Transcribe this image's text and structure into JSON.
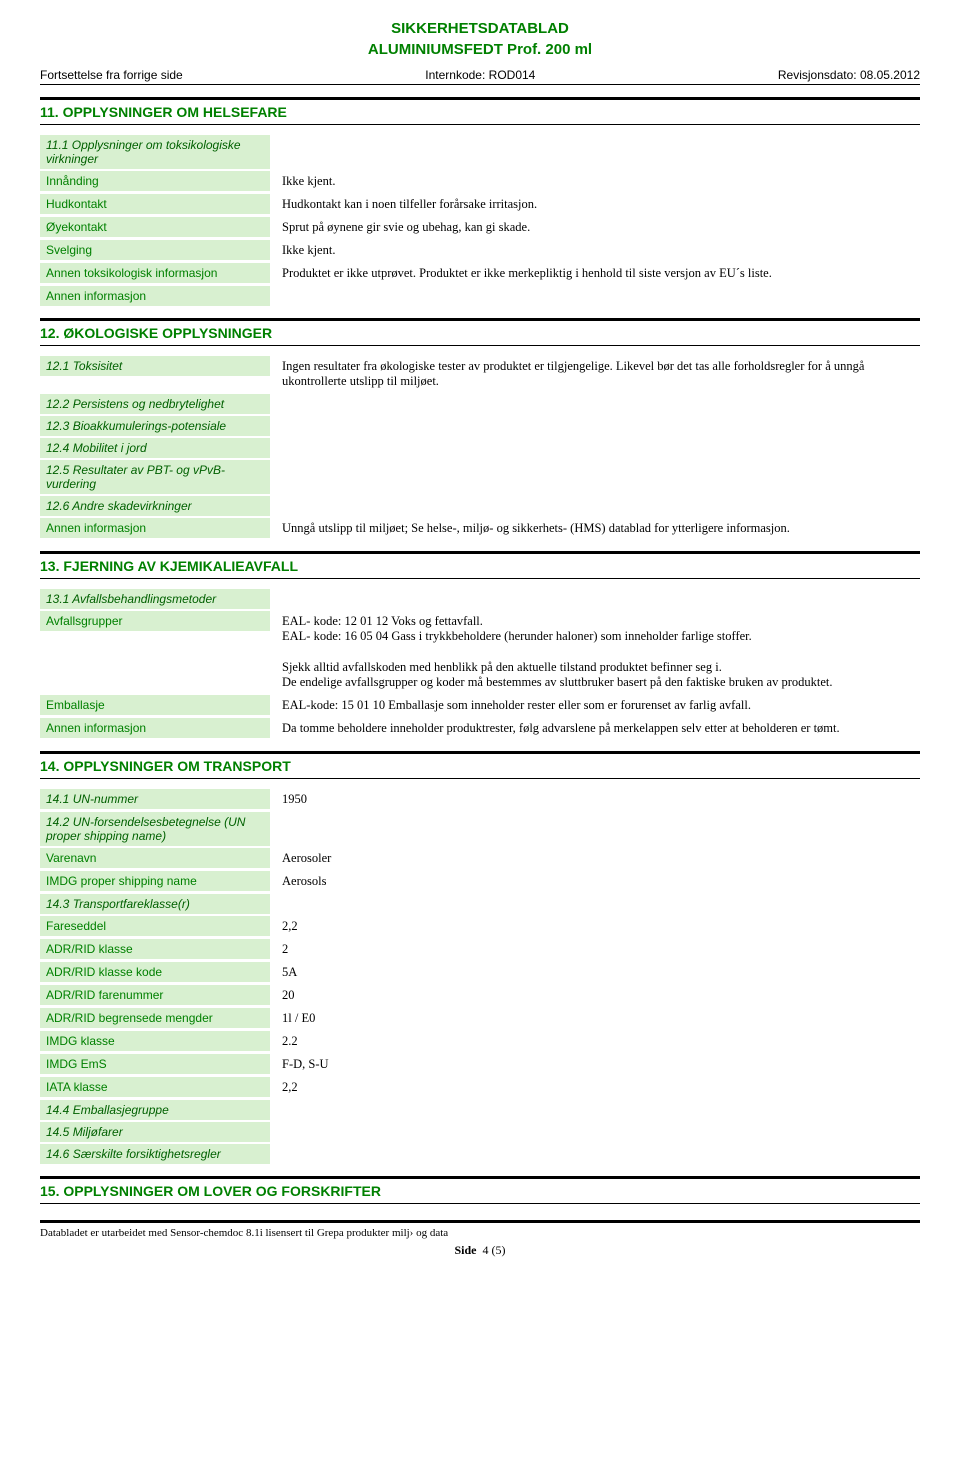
{
  "doc": {
    "title": "SIKKERHETSDATABLAD",
    "subtitle": "ALUMINIUMSFEDT Prof. 200 ml"
  },
  "header": {
    "continuation": "Fortsettelse fra forrige side",
    "internkode_label": "Internkode:",
    "internkode_value": "ROD014",
    "revdate_label": "Revisjonsdato:",
    "revdate_value": "08.05.2012"
  },
  "section11": {
    "title": "11. OPPLYSNINGER OM HELSEFARE",
    "rows": [
      {
        "label": "11.1 Opplysninger om toksikologiske virkninger",
        "value": ""
      },
      {
        "label": "Innånding",
        "value": "Ikke kjent."
      },
      {
        "label": "Hudkontakt",
        "value": "Hudkontakt kan i noen tilfeller forårsake irritasjon."
      },
      {
        "label": "Øyekontakt",
        "value": "Sprut på øynene gir svie og ubehag, kan gi skade."
      },
      {
        "label": "Svelging",
        "value": "Ikke kjent."
      },
      {
        "label": "Annen toksikologisk informasjon",
        "value": "Produktet er ikke utprøvet. Produktet er ikke merkepliktig i henhold til siste versjon av EU´s liste."
      },
      {
        "label": "Annen informasjon",
        "value": ""
      }
    ]
  },
  "section12": {
    "title": "12. ØKOLOGISKE OPPLYSNINGER",
    "rows": [
      {
        "label": "12.1 Toksisitet",
        "value": "Ingen resultater fra økologiske tester av produktet er tilgjengelige. Likevel bør det tas alle forholdsregler for å unngå ukontrollerte utslipp til miljøet."
      },
      {
        "label": "12.2 Persistens og nedbrytelighet",
        "value": ""
      },
      {
        "label": "12.3 Bioakkumulerings-potensiale",
        "value": ""
      },
      {
        "label": "12.4 Mobilitet i jord",
        "value": ""
      },
      {
        "label": "12.5 Resultater av PBT- og vPvB-vurdering",
        "value": ""
      },
      {
        "label": "12.6 Andre skadevirkninger",
        "value": ""
      },
      {
        "label": "Annen informasjon",
        "value": "Unngå utslipp til miljøet; Se helse-, miljø- og sikkerhets- (HMS) datablad for ytterligere informasjon."
      }
    ]
  },
  "section13": {
    "title": "13. FJERNING AV KJEMIKALIEAVFALL",
    "rows1": [
      {
        "label": "13.1 Avfallsbehandlingsmetoder",
        "value": ""
      },
      {
        "label": "Avfallsgrupper",
        "value": "EAL- kode: 12 01 12  Voks og fettavfall.\nEAL- kode: 16 05 04  Gass i trykkbeholdere (herunder haloner) som inneholder farlige stoffer."
      }
    ],
    "mid_text": "Sjekk alltid avfallskoden med henblikk på den aktuelle tilstand produktet befinner seg i.\nDe endelige avfallsgrupper og koder må bestemmes av sluttbruker basert på den faktiske bruken av produktet.",
    "rows2": [
      {
        "label": "Emballasje",
        "value": "EAL-kode: 15 01 10 Emballasje som inneholder rester eller som er forurenset av farlig avfall."
      },
      {
        "label": "Annen informasjon",
        "value": "Da tomme beholdere inneholder produktrester, følg advarslene på merkelappen selv etter at beholderen er tømt."
      }
    ]
  },
  "section14": {
    "title": "14. OPPLYSNINGER OM TRANSPORT",
    "rows": [
      {
        "label": "14.1 UN-nummer",
        "value": "1950"
      },
      {
        "label": "14.2 UN-forsendelsesbetegnelse (UN proper shipping name)",
        "value": ""
      },
      {
        "label": "Varenavn",
        "value": "Aerosoler"
      },
      {
        "label": "IMDG proper shipping name",
        "value": "Aerosols"
      },
      {
        "label": "14.3 Transportfareklasse(r)",
        "value": ""
      },
      {
        "label": "Fareseddel",
        "value": "2,2"
      },
      {
        "label": "ADR/RID klasse",
        "value": "2"
      },
      {
        "label": "ADR/RID klasse kode",
        "value": "5A"
      },
      {
        "label": "ADR/RID farenummer",
        "value": "20"
      },
      {
        "label": "ADR/RID begrensede mengder",
        "value": "1l / E0"
      },
      {
        "label": "IMDG klasse",
        "value": "2.2"
      },
      {
        "label": "IMDG EmS",
        "value": "F-D, S-U"
      },
      {
        "label": "IATA klasse",
        "value": "2,2"
      },
      {
        "label": "14.4 Emballasjegruppe",
        "value": ""
      },
      {
        "label": "14.5 Miljøfarer",
        "value": ""
      },
      {
        "label": "14.6 Særskilte forsiktighetsregler",
        "value": ""
      }
    ]
  },
  "section15": {
    "title": "15. OPPLYSNINGER OM LOVER OG FORSKRIFTER"
  },
  "footer": {
    "text": "Databladet er utarbeidet med Sensor-chemdoc 8.1i lisensert til Grepa produkter milj› og data",
    "page_label": "Side",
    "page_value": "4 (5)"
  }
}
